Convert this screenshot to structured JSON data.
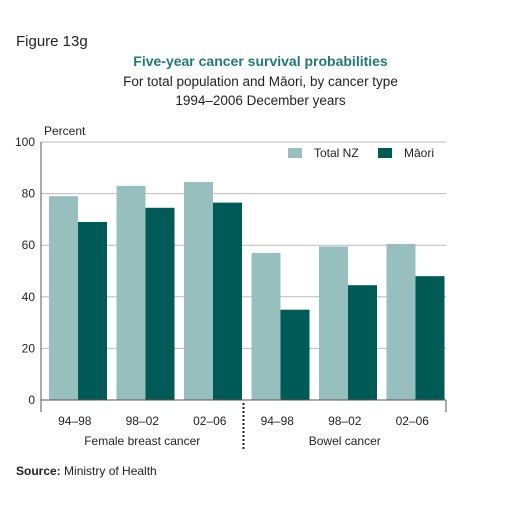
{
  "figure_label": "Figure 13g",
  "source": {
    "label": "Source:",
    "text": "Ministry of Health"
  },
  "colors": {
    "total_nz": "#96bfbd",
    "maori": "#005a55",
    "title": "#1f7a74",
    "grid": "#bbbbbb"
  },
  "chart_data": {
    "type": "bar",
    "title": "Five-year cancer survival probabilities",
    "subtitle": "For total population and Māori, by cancer type",
    "subtitle2": "1994–2006 December years",
    "ylabel": "Percent",
    "ylim": [
      0,
      100
    ],
    "yticks": [
      0,
      20,
      40,
      60,
      80,
      100
    ],
    "grid": true,
    "legend_position": "top-right",
    "categories": [
      "94–98",
      "98–02",
      "02–06",
      "94–98",
      "98–02",
      "02–06"
    ],
    "groups": [
      {
        "label": "Female breast cancer",
        "span": [
          0,
          2
        ]
      },
      {
        "label": "Bowel cancer",
        "span": [
          3,
          5
        ]
      }
    ],
    "series": [
      {
        "name": "Total NZ",
        "color": "#96bfbd",
        "values": [
          79,
          83,
          84.5,
          57,
          59.5,
          60.5
        ]
      },
      {
        "name": "Māori",
        "color": "#005a55",
        "values": [
          69,
          74.5,
          76.5,
          35,
          44.5,
          48
        ]
      }
    ]
  }
}
